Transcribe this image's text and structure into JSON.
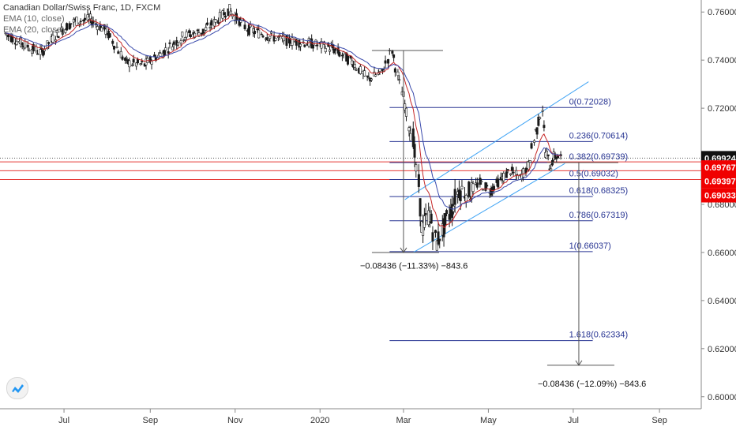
{
  "chart_data": {
    "type": "candlestick",
    "title": "Canadian Dollar/Swiss Franc, 1D, FXCM",
    "indicators": [
      {
        "name": "EMA (10, close)",
        "color": "#c62828"
      },
      {
        "name": "EMA (20, close)",
        "color": "#3949ab"
      }
    ],
    "x_ticks": [
      "Jul",
      "Sep",
      "Nov",
      "2020",
      "Mar",
      "May",
      "Jul",
      "Sep"
    ],
    "y_ticks": [
      "0.76000",
      "0.74000",
      "0.72000",
      "0.70000",
      "0.68000",
      "0.66000",
      "0.64000",
      "0.62000",
      "0.60000"
    ],
    "y_tick_values": [
      0.76,
      0.74,
      0.72,
      0.7,
      0.68,
      0.66,
      0.64,
      0.62,
      0.6
    ],
    "ylim": [
      0.595,
      0.765
    ],
    "grid": false,
    "candle_colors": {
      "body": "#1a1a1a",
      "up_body": "#ffffff"
    },
    "price_series": [
      {
        "date": "2019-05-20",
        "close": 0.751
      },
      {
        "date": "2019-06-01",
        "close": 0.747
      },
      {
        "date": "2019-06-15",
        "close": 0.743
      },
      {
        "date": "2019-06-25",
        "close": 0.75
      },
      {
        "date": "2019-07-08",
        "close": 0.756
      },
      {
        "date": "2019-07-20",
        "close": 0.757
      },
      {
        "date": "2019-08-01",
        "close": 0.752
      },
      {
        "date": "2019-08-15",
        "close": 0.739
      },
      {
        "date": "2019-08-28",
        "close": 0.738
      },
      {
        "date": "2019-09-10",
        "close": 0.743
      },
      {
        "date": "2019-09-25",
        "close": 0.75
      },
      {
        "date": "2019-10-10",
        "close": 0.752
      },
      {
        "date": "2019-10-28",
        "close": 0.761
      },
      {
        "date": "2019-11-10",
        "close": 0.753
      },
      {
        "date": "2019-11-25",
        "close": 0.75
      },
      {
        "date": "2019-12-10",
        "close": 0.748
      },
      {
        "date": "2019-12-25",
        "close": 0.747
      },
      {
        "date": "2020-01-10",
        "close": 0.745
      },
      {
        "date": "2020-01-25",
        "close": 0.739
      },
      {
        "date": "2020-02-05",
        "close": 0.732
      },
      {
        "date": "2020-02-15",
        "close": 0.735
      },
      {
        "date": "2020-02-22",
        "close": 0.744
      },
      {
        "date": "2020-03-01",
        "close": 0.725
      },
      {
        "date": "2020-03-08",
        "close": 0.708
      },
      {
        "date": "2020-03-12",
        "close": 0.688
      },
      {
        "date": "2020-03-15",
        "close": 0.67
      },
      {
        "date": "2020-03-20",
        "close": 0.676
      },
      {
        "date": "2020-03-25",
        "close": 0.664
      },
      {
        "date": "2020-03-30",
        "close": 0.67
      },
      {
        "date": "2020-04-05",
        "close": 0.678
      },
      {
        "date": "2020-04-10",
        "close": 0.686
      },
      {
        "date": "2020-04-18",
        "close": 0.685
      },
      {
        "date": "2020-04-25",
        "close": 0.689
      },
      {
        "date": "2020-05-03",
        "close": 0.686
      },
      {
        "date": "2020-05-10",
        "close": 0.69
      },
      {
        "date": "2020-05-17",
        "close": 0.694
      },
      {
        "date": "2020-05-24",
        "close": 0.691
      },
      {
        "date": "2020-05-30",
        "close": 0.696
      },
      {
        "date": "2020-06-05",
        "close": 0.711
      },
      {
        "date": "2020-06-09",
        "close": 0.72
      },
      {
        "date": "2020-06-12",
        "close": 0.701
      },
      {
        "date": "2020-06-15",
        "close": 0.696
      },
      {
        "date": "2020-06-18",
        "close": 0.7
      },
      {
        "date": "2020-06-23",
        "close": 0.6992
      }
    ],
    "fibonacci": {
      "start_date": "2020-02-20",
      "end_date": "2020-07-15",
      "color": "#283593",
      "levels": [
        {
          "label": "0(0.72028)",
          "value": 0.72028
        },
        {
          "label": "0.236(0.70614)",
          "value": 0.70614
        },
        {
          "label": "0.382(0.69739)",
          "value": 0.69739
        },
        {
          "label": "0.5(0.69032)",
          "value": 0.69032
        },
        {
          "label": "0.618(0.68325)",
          "value": 0.68325
        },
        {
          "label": "0.786(0.67319)",
          "value": 0.67319
        },
        {
          "label": "1(0.66037)",
          "value": 0.66037
        },
        {
          "label": "1.618(0.62334)",
          "value": 0.62334
        }
      ]
    },
    "channel": {
      "color": "#42a5f5",
      "upper": [
        {
          "date": "2020-03-02",
          "value": 0.682
        },
        {
          "date": "2020-07-12",
          "value": 0.731
        }
      ],
      "lower": [
        {
          "date": "2020-03-08",
          "value": 0.66
        },
        {
          "date": "2020-06-25",
          "value": 0.697
        }
      ]
    },
    "measures": [
      {
        "label": "−0.08436 (−11.33%) −843.6",
        "date": "2020-03-01",
        "from": 0.744,
        "to": 0.66,
        "label_value": 0.6545
      },
      {
        "label": "−0.08436 (−12.09%) −843.6",
        "date": "2020-07-05",
        "from": 0.6974,
        "to": 0.6131,
        "label_value": 0.6055
      }
    ],
    "horizontal_lines": [
      {
        "value": 0.69767,
        "color": "#e53935"
      },
      {
        "value": 0.69397,
        "color": "#e53935"
      },
      {
        "value": 0.69033,
        "color": "#e53935"
      },
      {
        "value": 0.69924,
        "color": "#555555"
      }
    ],
    "price_labels": [
      {
        "text": "0.69924",
        "value": 0.69924,
        "bg": "#111111",
        "fg": "#ffffff"
      },
      {
        "text": "0.69767",
        "value": 0.69767,
        "bg": "#f00000",
        "fg": "#ffffff"
      },
      {
        "text": "0.69397",
        "value": 0.69397,
        "bg": "#f00000",
        "fg": "#ffffff"
      },
      {
        "text": "0.69033",
        "value": 0.69033,
        "bg": "#f00000",
        "fg": "#ffffff"
      }
    ]
  }
}
